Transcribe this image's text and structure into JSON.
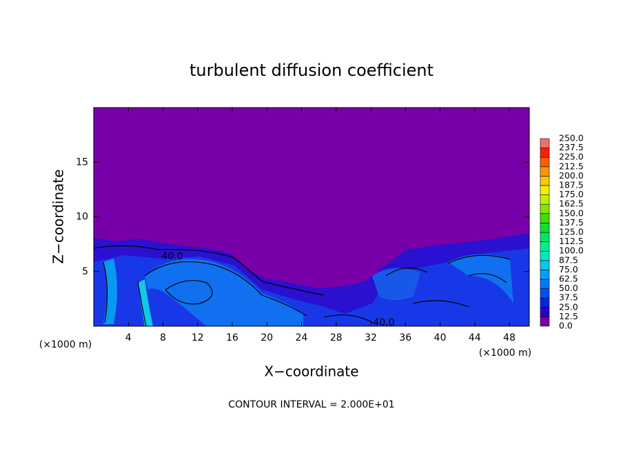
{
  "chart_data": {
    "type": "contour",
    "title": "turbulent diffusion coefficient",
    "xlabel": "X−coordinate",
    "ylabel": "Z−coordinate",
    "x_unit": "(×1000 m)",
    "note": "CONTOUR INTERVAL = 2.000E+01",
    "contour_labels": [
      "40.0",
      "40.0"
    ],
    "xlim": [
      0,
      50.3
    ],
    "ylim": [
      0,
      20
    ],
    "xticks": [
      4,
      8,
      12,
      16,
      20,
      24,
      28,
      32,
      36,
      40,
      44,
      48
    ],
    "yticks": [
      5,
      10,
      15
    ],
    "colorbar": {
      "ticks": [
        {
          "value": 0,
          "label": "0.0"
        },
        {
          "value": 12.5,
          "label": "12.5"
        },
        {
          "value": 25,
          "label": "25.0"
        },
        {
          "value": 37.5,
          "label": "37.5"
        },
        {
          "value": 50,
          "label": "50.0"
        },
        {
          "value": 62.5,
          "label": "62.5"
        },
        {
          "value": 75,
          "label": "75.0"
        },
        {
          "value": 87.5,
          "label": "87.5"
        },
        {
          "value": 100,
          "label": "100.0"
        },
        {
          "value": 112.5,
          "label": "112.5"
        },
        {
          "value": 125,
          "label": "125.0"
        },
        {
          "value": 137.5,
          "label": "137.5"
        },
        {
          "value": 150,
          "label": "150.0"
        },
        {
          "value": 162.5,
          "label": "162.5"
        },
        {
          "value": 175,
          "label": "175.0"
        },
        {
          "value": 187.5,
          "label": "187.5"
        },
        {
          "value": 200,
          "label": "200.0"
        },
        {
          "value": 212.5,
          "label": "212.5"
        },
        {
          "value": 225,
          "label": "225.0"
        },
        {
          "value": 237.5,
          "label": "237.5"
        },
        {
          "value": 250,
          "label": "250.0"
        }
      ],
      "colors": [
        "#7800a8",
        "#2800c8",
        "#0028e0",
        "#0050f0",
        "#0078f8",
        "#00a0f8",
        "#00c8f0",
        "#00e8c8",
        "#00f090",
        "#00e860",
        "#10e030",
        "#40e000",
        "#80e800",
        "#c0f000",
        "#f0f000",
        "#f8c800",
        "#f89800",
        "#f86000",
        "#f82000",
        "#f07070"
      ]
    }
  }
}
